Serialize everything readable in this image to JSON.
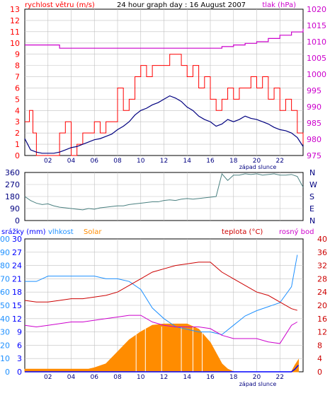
{
  "colors": {
    "frame": "#000000",
    "grid": "#c0c0c0",
    "wind": "#ff0000",
    "wind_avg": "#000080",
    "pressure": "#cc00cc",
    "direction": "#4a8080",
    "rain": "#0000ff",
    "humidity": "#1e90ff",
    "solar": "#ff8c00",
    "temperature": "#cc0000",
    "dewpoint": "#cc00cc",
    "rain_axis": "#0000ff"
  },
  "x_tick_labels": [
    "02",
    "04",
    "06",
    "08",
    "10",
    "12",
    "14",
    "16",
    "18",
    "20",
    "22"
  ],
  "sunset_label": "západ slunce",
  "panel1": {
    "title": "24 hour graph day : 16 August 2007",
    "left_label": "rychlost větru (m/s)",
    "right_label": "tlak (hPa)",
    "left_ticks": [
      "0",
      "1",
      "2",
      "3",
      "4",
      "5",
      "6",
      "7",
      "8",
      "9",
      "10",
      "11",
      "12",
      "13"
    ],
    "right_ticks": [
      "975",
      "980",
      "985",
      "990",
      "995",
      "1000",
      "1005",
      "1010",
      "1015",
      "1020"
    ]
  },
  "panel2": {
    "left_ticks": [
      "0",
      "90",
      "180",
      "270",
      "360"
    ],
    "right_labels": [
      "N",
      "E",
      "S",
      "W",
      "N"
    ]
  },
  "panel3": {
    "rain_label": "srážky (mm)",
    "humidity_label": "vlhkost",
    "solar_label": "Solar",
    "temp_label": "teplota (°C)",
    "dew_label": "rosný bod",
    "left_ticks_rain": [
      "0",
      "3",
      "6",
      "9",
      "12",
      "15",
      "18",
      "21",
      "24",
      "27",
      "30"
    ],
    "left_ticks_hum": [
      "0",
      "10",
      "20",
      "30",
      "40",
      "50",
      "60",
      "70",
      "80",
      "90",
      "100"
    ],
    "right_ticks": [
      "0",
      "4",
      "8",
      "12",
      "16",
      "20",
      "24",
      "28",
      "32",
      "36",
      "40"
    ]
  },
  "chart_data": [
    {
      "type": "line",
      "title": "24 hour graph day : 16 August 2007",
      "xlabel": "",
      "ylabel": "rychlost větru (m/s)",
      "ylim": [
        0,
        13
      ],
      "y2label": "tlak (hPa)",
      "y2lim": [
        975,
        1020
      ],
      "x_unit": "hours",
      "grid": true,
      "series": [
        {
          "key": "wind",
          "axis": "left",
          "x": [
            0,
            0.4,
            0.7,
            1.0,
            1.5,
            2.0,
            2.5,
            3.0,
            3.5,
            4.0,
            4.5,
            5.0,
            5.5,
            6.0,
            6.5,
            7.0,
            7.5,
            8.0,
            8.5,
            9.0,
            9.5,
            10.0,
            10.5,
            11.0,
            11.5,
            12.0,
            12.5,
            13.0,
            13.5,
            14.0,
            14.5,
            15.0,
            15.5,
            16.0,
            16.5,
            17.0,
            17.5,
            18.0,
            18.5,
            19.0,
            19.5,
            20.0,
            20.5,
            21.0,
            21.5,
            22.0,
            22.5,
            23.0,
            23.5,
            24.0
          ],
          "values": [
            3,
            4,
            2,
            0,
            0,
            0,
            0,
            2,
            3,
            0,
            1,
            2,
            2,
            3,
            2,
            3,
            3,
            6,
            4,
            5,
            7,
            8,
            7,
            8,
            8,
            8,
            9,
            9,
            8,
            7,
            8,
            6,
            7,
            5,
            4,
            5,
            6,
            5,
            6,
            6,
            7,
            6,
            7,
            5,
            6,
            4,
            5,
            4,
            2,
            1
          ]
        },
        {
          "key": "wind_avg",
          "axis": "left",
          "x": [
            0,
            0.5,
            1.0,
            1.5,
            2.0,
            2.5,
            3.0,
            3.5,
            4.0,
            4.5,
            5.0,
            5.5,
            6.0,
            6.5,
            7.0,
            7.5,
            8.0,
            8.5,
            9.0,
            9.5,
            10.0,
            10.5,
            11.0,
            11.5,
            12.0,
            12.5,
            13.0,
            13.5,
            14.0,
            14.5,
            15.0,
            15.5,
            16.0,
            16.5,
            17.0,
            17.5,
            18.0,
            18.5,
            19.0,
            19.5,
            20.0,
            20.5,
            21.0,
            21.5,
            22.0,
            22.5,
            23.0,
            23.5,
            24.0
          ],
          "values": [
            1.5,
            0.5,
            0.3,
            0.2,
            0.2,
            0.2,
            0.3,
            0.5,
            0.7,
            0.8,
            1.0,
            1.2,
            1.4,
            1.5,
            1.7,
            1.9,
            2.3,
            2.6,
            3.0,
            3.6,
            4.0,
            4.2,
            4.5,
            4.7,
            5.0,
            5.3,
            5.1,
            4.8,
            4.3,
            4.0,
            3.5,
            3.2,
            3.0,
            2.6,
            2.8,
            3.2,
            3.0,
            3.2,
            3.5,
            3.3,
            3.2,
            3.0,
            2.8,
            2.5,
            2.3,
            2.2,
            2.0,
            1.6,
            0.8
          ]
        },
        {
          "key": "pressure",
          "axis": "right",
          "x": [
            0,
            2,
            3,
            4,
            6,
            8,
            10,
            12,
            14,
            16,
            17,
            18,
            19,
            20,
            21,
            22,
            23,
            24
          ],
          "values": [
            1009,
            1009,
            1008,
            1008,
            1008,
            1008,
            1008,
            1008,
            1008,
            1008,
            1008.5,
            1009,
            1009.5,
            1010,
            1011,
            1012,
            1013,
            1014
          ]
        }
      ]
    },
    {
      "type": "line",
      "ylabel": "",
      "ylim": [
        0,
        360
      ],
      "grid": true,
      "series": [
        {
          "key": "direction",
          "x": [
            0,
            0.5,
            1,
            1.5,
            2,
            2.5,
            3,
            3.5,
            4,
            4.5,
            5,
            5.5,
            6,
            6.5,
            7,
            7.5,
            8,
            8.5,
            9,
            9.5,
            10,
            10.5,
            11,
            11.5,
            12,
            12.5,
            13,
            13.5,
            14,
            14.5,
            15,
            15.5,
            16,
            16.5,
            17,
            17.5,
            18,
            18.5,
            19,
            19.5,
            20,
            20.5,
            21,
            21.5,
            22,
            22.5,
            23,
            23.5,
            24
          ],
          "values": [
            180,
            150,
            130,
            120,
            125,
            110,
            100,
            95,
            90,
            85,
            80,
            90,
            85,
            95,
            100,
            105,
            110,
            110,
            120,
            125,
            130,
            135,
            140,
            140,
            150,
            155,
            150,
            160,
            165,
            160,
            165,
            170,
            175,
            180,
            350,
            300,
            340,
            340,
            350,
            345,
            350,
            340,
            345,
            350,
            340,
            340,
            345,
            330,
            250
          ]
        }
      ]
    },
    {
      "type": "line",
      "ylabel": "srážky (mm) / vlhkost",
      "ylim": [
        0,
        100
      ],
      "y2label": "teplota (°C)",
      "y2lim": [
        0,
        40
      ],
      "grid": true,
      "series": [
        {
          "key": "temperature",
          "axis": "right",
          "x": [
            0,
            1,
            2,
            3,
            4,
            5,
            6,
            7,
            8,
            9,
            10,
            11,
            12,
            13,
            14,
            15,
            16,
            17,
            18,
            19,
            20,
            21,
            22,
            23,
            23.5
          ],
          "values": [
            21.5,
            21,
            21,
            21.5,
            22,
            22,
            22.5,
            23,
            24,
            26,
            28,
            30,
            31,
            32,
            32.5,
            33,
            33,
            30,
            28,
            26,
            24,
            23,
            21,
            19,
            18.5
          ]
        },
        {
          "key": "dewpoint",
          "axis": "right",
          "x": [
            0,
            1,
            2,
            3,
            4,
            5,
            6,
            7,
            8,
            9,
            10,
            11,
            12,
            13,
            14,
            15,
            16,
            17,
            18,
            19,
            20,
            21,
            22,
            23,
            23.5
          ],
          "values": [
            14,
            13.5,
            14,
            14.5,
            15,
            15,
            15.5,
            16,
            16.5,
            17,
            17,
            15,
            14,
            13.5,
            13.5,
            13.5,
            13,
            11,
            10,
            10,
            10,
            9,
            8.5,
            14,
            15
          ]
        },
        {
          "key": "humidity",
          "axis": "left",
          "x": [
            0,
            1,
            2,
            3,
            4,
            5,
            6,
            7,
            8,
            9,
            10,
            11,
            12,
            13,
            14,
            15,
            16,
            17,
            18,
            19,
            20,
            21,
            22,
            23,
            23.5
          ],
          "values": [
            68,
            68,
            72,
            72,
            72,
            72,
            72,
            70,
            70,
            68,
            62,
            48,
            40,
            34,
            32,
            30,
            30,
            28,
            35,
            42,
            46,
            49,
            52,
            64,
            88
          ]
        },
        {
          "key": "solar",
          "axis": "left",
          "x": [
            0,
            5.5,
            6,
            7,
            8,
            9,
            10,
            11,
            12,
            13,
            14,
            15,
            16,
            17,
            17.5,
            18,
            23,
            23.3,
            23.6
          ],
          "values": [
            2,
            2,
            3,
            6,
            15,
            24,
            30,
            35,
            36,
            36,
            36,
            32,
            22,
            6,
            2,
            0,
            0,
            5,
            9
          ]
        },
        {
          "key": "rain",
          "axis": "left",
          "x": [
            0,
            23,
            23.3,
            23.6
          ],
          "values": [
            0,
            0,
            2,
            5
          ]
        }
      ]
    }
  ]
}
